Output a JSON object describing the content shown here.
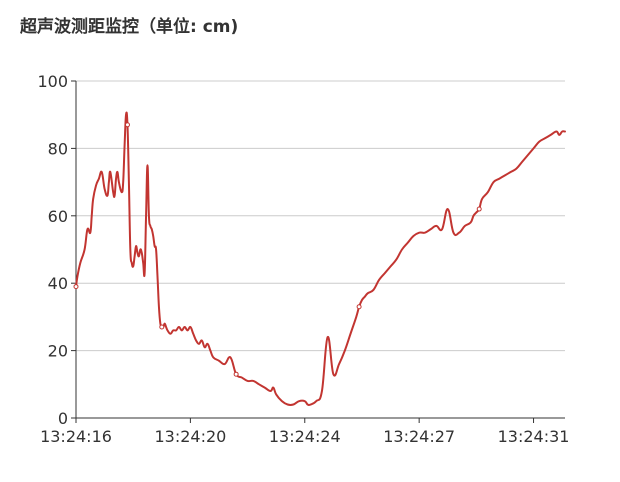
{
  "chart_data": {
    "type": "line",
    "title": "超声波测距监控（单位: cm)",
    "xlabel": "",
    "ylabel": "",
    "ylim": [
      0,
      100
    ],
    "y_ticks": [
      "0",
      "20",
      "40",
      "60",
      "80",
      "100"
    ],
    "x_ticks": [
      "13:24:16",
      "13:24:20",
      "13:24:24",
      "13:24:27",
      "13:24:31"
    ],
    "x_tick_positions": [
      0,
      4,
      8,
      12,
      16
    ],
    "xlim": [
      0,
      17.1
    ],
    "grid": "horizontal",
    "line_color": "#c23531",
    "series": [
      {
        "name": "",
        "x": [
          0,
          0.05,
          0.15,
          0.3,
          0.4,
          0.5,
          0.55,
          0.6,
          0.7,
          0.8,
          0.9,
          1.0,
          1.1,
          1.15,
          1.2,
          1.3,
          1.35,
          1.4,
          1.45,
          1.5,
          1.6,
          1.65,
          1.7,
          1.75,
          1.8,
          1.85,
          1.9,
          1.95,
          2.0,
          2.05,
          2.1,
          2.15,
          2.2,
          2.25,
          2.3,
          2.35,
          2.4,
          2.45,
          2.5,
          2.55,
          2.6,
          2.65,
          2.7,
          2.75,
          2.8,
          2.85,
          2.9,
          2.95,
          3.0,
          3.05,
          3.1,
          3.15,
          3.2,
          3.3,
          3.4,
          3.5,
          3.6,
          3.7,
          3.8,
          3.9,
          4.0,
          4.1,
          4.2,
          4.3,
          4.4,
          4.5,
          4.6,
          4.7,
          4.8,
          5.0,
          5.2,
          5.4,
          5.6,
          5.8,
          6.0,
          6.2,
          6.4,
          6.6,
          6.8,
          6.9,
          7.0,
          7.2,
          7.4,
          7.6,
          7.8,
          8.0,
          8.1,
          8.2,
          8.4,
          8.6,
          8.8,
          9.0,
          9.2,
          9.4,
          9.6,
          9.8,
          9.9,
          10.0,
          10.1,
          10.2,
          10.4,
          10.6,
          10.8,
          11.0,
          11.2,
          11.4,
          11.6,
          11.8,
          12.0,
          12.2,
          12.4,
          12.6,
          12.8,
          13.0,
          13.2,
          13.4,
          13.6,
          13.8,
          13.9,
          14.0,
          14.1,
          14.2,
          14.4,
          14.6,
          14.8,
          15.0,
          15.2,
          15.4,
          15.6,
          15.8,
          16.0,
          16.2,
          16.4,
          16.6,
          16.8,
          16.9,
          17.0,
          17.1
        ],
        "values": [
          39,
          42,
          46,
          50,
          56,
          55,
          60,
          65,
          69,
          71,
          73,
          68,
          66,
          70,
          73,
          67,
          66,
          71,
          73,
          70,
          67,
          70,
          81,
          90,
          87,
          70,
          50,
          46,
          45,
          48,
          51,
          49,
          48,
          50,
          49,
          46,
          43,
          60,
          75,
          60,
          57,
          56,
          54,
          51,
          50,
          42,
          33,
          28,
          27,
          27,
          28,
          27,
          26,
          25,
          26,
          26,
          27,
          26,
          27,
          26,
          27,
          25,
          23,
          22,
          23,
          21,
          22,
          20,
          18,
          17,
          16,
          18,
          13,
          12,
          11,
          11,
          10,
          9,
          8,
          9,
          7,
          5,
          4,
          4,
          5,
          5,
          4,
          4,
          5,
          8,
          24,
          13,
          16,
          20,
          25,
          30,
          33,
          35,
          36,
          37,
          38,
          41,
          43,
          45,
          47,
          50,
          52,
          54,
          55,
          55,
          56,
          57,
          56,
          62,
          55,
          55,
          57,
          58,
          60,
          61,
          62,
          65,
          67,
          70,
          71,
          72,
          73,
          74,
          76,
          78,
          80,
          82,
          83,
          84,
          85,
          84,
          85,
          85
        ]
      }
    ]
  }
}
